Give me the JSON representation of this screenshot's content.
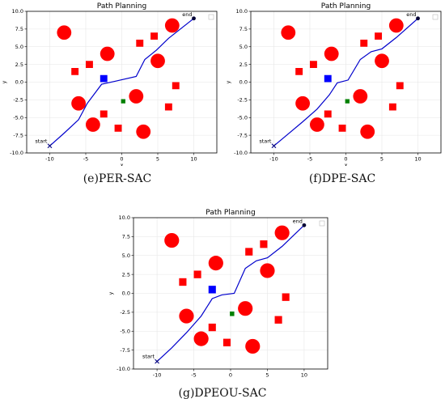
{
  "chart_data": [
    {
      "type": "scatter",
      "panel": "e",
      "title": "Path Planning",
      "caption": "(e)PER-SAC",
      "xlabel": "x",
      "ylabel": "y",
      "xlim": [
        -13.2,
        13.2
      ],
      "ylim": [
        -10,
        10
      ],
      "xticks": [
        -10,
        -5,
        0,
        5,
        10
      ],
      "yticks": [
        -10.0,
        -7.5,
        -5.0,
        -2.5,
        0.0,
        2.5,
        5.0,
        7.5,
        10.0
      ],
      "grid": true,
      "start_label": "start",
      "end_label": "end",
      "start": {
        "x": -10,
        "y": -9
      },
      "end": {
        "x": 10,
        "y": 9
      },
      "path": [
        [
          -10,
          -9
        ],
        [
          -8,
          -7.2
        ],
        [
          -6,
          -5.3
        ],
        [
          -4.8,
          -3
        ],
        [
          -2.8,
          -0.3
        ],
        [
          -1,
          0.1
        ],
        [
          2,
          0.8
        ],
        [
          3.2,
          3.2
        ],
        [
          4.8,
          4.5
        ],
        [
          6.5,
          6.2
        ],
        [
          10,
          9
        ]
      ],
      "circle_obstacles": [
        [
          -8,
          7
        ],
        [
          -2,
          4
        ],
        [
          -6,
          -3
        ],
        [
          -4,
          -6
        ],
        [
          2,
          -2
        ],
        [
          3,
          -7
        ],
        [
          5,
          3
        ],
        [
          7,
          8
        ]
      ],
      "square_obstacles": [
        [
          -6.5,
          1.5
        ],
        [
          -4.5,
          2.5
        ],
        [
          -2.5,
          -4.5
        ],
        [
          -0.5,
          -6.5
        ],
        [
          2.5,
          5.5
        ],
        [
          4.5,
          6.5
        ],
        [
          6.5,
          -3.5
        ],
        [
          7.5,
          -0.5
        ]
      ],
      "agent": {
        "x": -2.5,
        "y": 0.5,
        "color": "#0000ff"
      },
      "goal_marker": {
        "x": 0.2,
        "y": -2.7,
        "color": "#008000"
      },
      "colors": {
        "path": "#0000cc",
        "obstacle": "#ff0000"
      }
    },
    {
      "type": "scatter",
      "panel": "f",
      "title": "Path Planning",
      "caption": "(f)DPE-SAC",
      "xlabel": "x",
      "ylabel": "y",
      "xlim": [
        -13.2,
        13.2
      ],
      "ylim": [
        -10,
        10
      ],
      "xticks": [
        -10,
        -5,
        0,
        5,
        10
      ],
      "yticks": [
        -10.0,
        -7.5,
        -5.0,
        -2.5,
        0.0,
        2.5,
        5.0,
        7.5,
        10.0
      ],
      "grid": true,
      "start_label": "start",
      "end_label": "end",
      "start": {
        "x": -10,
        "y": -9
      },
      "end": {
        "x": 10,
        "y": 9
      },
      "path": [
        [
          -10,
          -9
        ],
        [
          -8,
          -7.3
        ],
        [
          -6,
          -5.6
        ],
        [
          -4,
          -3.8
        ],
        [
          -2.3,
          -1.8
        ],
        [
          -1.2,
          -0.1
        ],
        [
          0.3,
          0.3
        ],
        [
          2,
          3.2
        ],
        [
          3.5,
          4.3
        ],
        [
          5,
          4.7
        ],
        [
          7,
          6.3
        ],
        [
          10,
          9
        ]
      ],
      "circle_obstacles": [
        [
          -8,
          7
        ],
        [
          -2,
          4
        ],
        [
          -6,
          -3
        ],
        [
          -4,
          -6
        ],
        [
          2,
          -2
        ],
        [
          3,
          -7
        ],
        [
          5,
          3
        ],
        [
          7,
          8
        ]
      ],
      "square_obstacles": [
        [
          -6.5,
          1.5
        ],
        [
          -4.5,
          2.5
        ],
        [
          -2.5,
          -4.5
        ],
        [
          -0.5,
          -6.5
        ],
        [
          2.5,
          5.5
        ],
        [
          4.5,
          6.5
        ],
        [
          6.5,
          -3.5
        ],
        [
          7.5,
          -0.5
        ]
      ],
      "agent": {
        "x": -2.5,
        "y": 0.5,
        "color": "#0000ff"
      },
      "goal_marker": {
        "x": 0.2,
        "y": -2.7,
        "color": "#008000"
      },
      "colors": {
        "path": "#0000cc",
        "obstacle": "#ff0000"
      }
    },
    {
      "type": "scatter",
      "panel": "g",
      "title": "Path Planning",
      "caption": "(g)DPEOU-SAC",
      "xlabel": "x",
      "ylabel": "y",
      "xlim": [
        -13.2,
        13.2
      ],
      "ylim": [
        -10,
        10
      ],
      "xticks": [
        -10,
        -5,
        0,
        5,
        10
      ],
      "yticks": [
        -10.0,
        -7.5,
        -5.0,
        -2.5,
        0.0,
        2.5,
        5.0,
        7.5,
        10.0
      ],
      "grid": true,
      "start_label": "start",
      "end_label": "end",
      "start": {
        "x": -10,
        "y": -9
      },
      "end": {
        "x": 10,
        "y": 9
      },
      "path": [
        [
          -10,
          -9
        ],
        [
          -8,
          -7.2
        ],
        [
          -6,
          -5.2
        ],
        [
          -4,
          -3
        ],
        [
          -2.5,
          -0.7
        ],
        [
          -1.2,
          -0.2
        ],
        [
          0.5,
          0
        ],
        [
          2,
          3.3
        ],
        [
          3.5,
          4.3
        ],
        [
          5,
          4.7
        ],
        [
          7,
          6.2
        ],
        [
          10,
          9
        ]
      ],
      "circle_obstacles": [
        [
          -8,
          7
        ],
        [
          -2,
          4
        ],
        [
          -6,
          -3
        ],
        [
          -4,
          -6
        ],
        [
          2,
          -2
        ],
        [
          3,
          -7
        ],
        [
          5,
          3
        ],
        [
          7,
          8
        ]
      ],
      "square_obstacles": [
        [
          -6.5,
          1.5
        ],
        [
          -4.5,
          2.5
        ],
        [
          -2.5,
          -4.5
        ],
        [
          -0.5,
          -6.5
        ],
        [
          2.5,
          5.5
        ],
        [
          4.5,
          6.5
        ],
        [
          6.5,
          -3.5
        ],
        [
          7.5,
          -0.5
        ]
      ],
      "agent": {
        "x": -2.5,
        "y": 0.5,
        "color": "#0000ff"
      },
      "goal_marker": {
        "x": 0.2,
        "y": -2.7,
        "color": "#008000"
      },
      "colors": {
        "path": "#0000cc",
        "obstacle": "#ff0000"
      }
    }
  ]
}
